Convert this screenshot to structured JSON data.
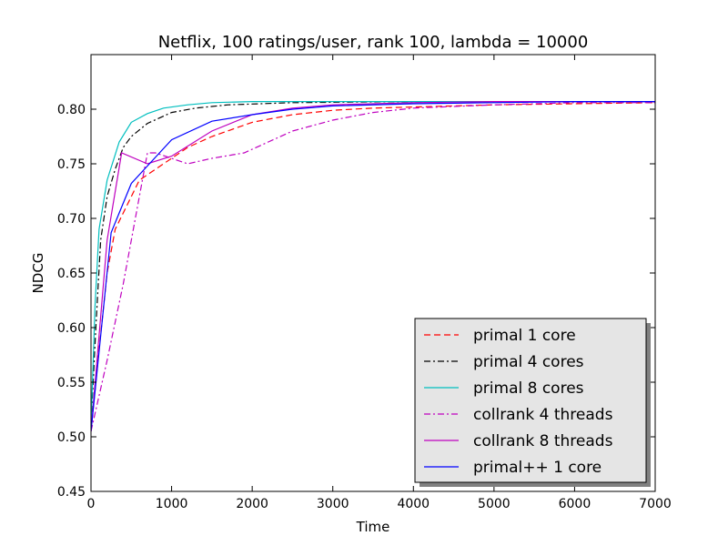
{
  "chart_data": {
    "type": "line",
    "title": "Netflix, 100 ratings/user, rank 100, lambda = 10000",
    "xlabel": "Time",
    "ylabel": "NDCG",
    "xlim": [
      0,
      7000
    ],
    "ylim": [
      0.45,
      0.85
    ],
    "xticks": [
      0,
      1000,
      2000,
      3000,
      4000,
      5000,
      6000,
      7000
    ],
    "yticks": [
      0.45,
      0.5,
      0.55,
      0.6,
      0.65,
      0.7,
      0.75,
      0.8
    ],
    "legend_position": "lower-right",
    "grid": false,
    "series": [
      {
        "name": "primal 1 core",
        "color": "#ff0000",
        "style": "dashed",
        "points": [
          [
            0,
            0.505
          ],
          [
            100,
            0.58
          ],
          [
            200,
            0.65
          ],
          [
            300,
            0.69
          ],
          [
            400,
            0.705
          ],
          [
            500,
            0.72
          ],
          [
            600,
            0.735
          ],
          [
            800,
            0.745
          ],
          [
            1000,
            0.755
          ],
          [
            1200,
            0.765
          ],
          [
            1500,
            0.775
          ],
          [
            2000,
            0.788
          ],
          [
            2500,
            0.795
          ],
          [
            3000,
            0.799
          ],
          [
            3500,
            0.801
          ],
          [
            4000,
            0.802
          ],
          [
            5000,
            0.804
          ],
          [
            6000,
            0.805
          ],
          [
            7000,
            0.806
          ]
        ]
      },
      {
        "name": "primal 4 cores",
        "color": "#000000",
        "style": "dashdot",
        "points": [
          [
            0,
            0.51
          ],
          [
            60,
            0.6
          ],
          [
            120,
            0.68
          ],
          [
            200,
            0.72
          ],
          [
            300,
            0.745
          ],
          [
            400,
            0.765
          ],
          [
            500,
            0.775
          ],
          [
            700,
            0.787
          ],
          [
            1000,
            0.797
          ],
          [
            1300,
            0.801
          ],
          [
            1700,
            0.804
          ],
          [
            2500,
            0.806
          ],
          [
            4000,
            0.807
          ],
          [
            7000,
            0.807
          ]
        ]
      },
      {
        "name": "primal 8 cores",
        "color": "#00bfbf",
        "style": "solid",
        "points": [
          [
            0,
            0.51
          ],
          [
            50,
            0.62
          ],
          [
            100,
            0.69
          ],
          [
            200,
            0.735
          ],
          [
            350,
            0.77
          ],
          [
            500,
            0.788
          ],
          [
            700,
            0.796
          ],
          [
            900,
            0.801
          ],
          [
            1200,
            0.804
          ],
          [
            1500,
            0.806
          ],
          [
            2000,
            0.807
          ],
          [
            3000,
            0.807
          ],
          [
            7000,
            0.807
          ]
        ]
      },
      {
        "name": "collrank 4 threads",
        "color": "#bf00bf",
        "style": "dashdot",
        "points": [
          [
            0,
            0.505
          ],
          [
            200,
            0.57
          ],
          [
            400,
            0.64
          ],
          [
            600,
            0.72
          ],
          [
            700,
            0.76
          ],
          [
            800,
            0.76
          ],
          [
            1000,
            0.755
          ],
          [
            1200,
            0.75
          ],
          [
            1500,
            0.755
          ],
          [
            1900,
            0.76
          ],
          [
            2200,
            0.77
          ],
          [
            2500,
            0.78
          ],
          [
            3000,
            0.79
          ],
          [
            3500,
            0.797
          ],
          [
            4000,
            0.801
          ],
          [
            5000,
            0.804
          ],
          [
            6000,
            0.806
          ],
          [
            7000,
            0.806
          ]
        ]
      },
      {
        "name": "collrank 8 threads",
        "color": "#bf00bf",
        "style": "solid",
        "points": [
          [
            0,
            0.505
          ],
          [
            200,
            0.68
          ],
          [
            380,
            0.76
          ],
          [
            700,
            0.75
          ],
          [
            1000,
            0.757
          ],
          [
            1500,
            0.78
          ],
          [
            2000,
            0.795
          ],
          [
            2500,
            0.801
          ],
          [
            3000,
            0.804
          ],
          [
            4000,
            0.806
          ],
          [
            5000,
            0.807
          ],
          [
            7000,
            0.807
          ]
        ]
      },
      {
        "name": "primal++ 1 core",
        "color": "#0000ff",
        "style": "solid",
        "points": [
          [
            0,
            0.505
          ],
          [
            250,
            0.687
          ],
          [
            500,
            0.732
          ],
          [
            700,
            0.748
          ],
          [
            1000,
            0.772
          ],
          [
            1500,
            0.789
          ],
          [
            2000,
            0.795
          ],
          [
            2500,
            0.8
          ],
          [
            3000,
            0.803
          ],
          [
            4000,
            0.805
          ],
          [
            5000,
            0.806
          ],
          [
            6000,
            0.807
          ],
          [
            7000,
            0.807
          ]
        ]
      }
    ]
  }
}
